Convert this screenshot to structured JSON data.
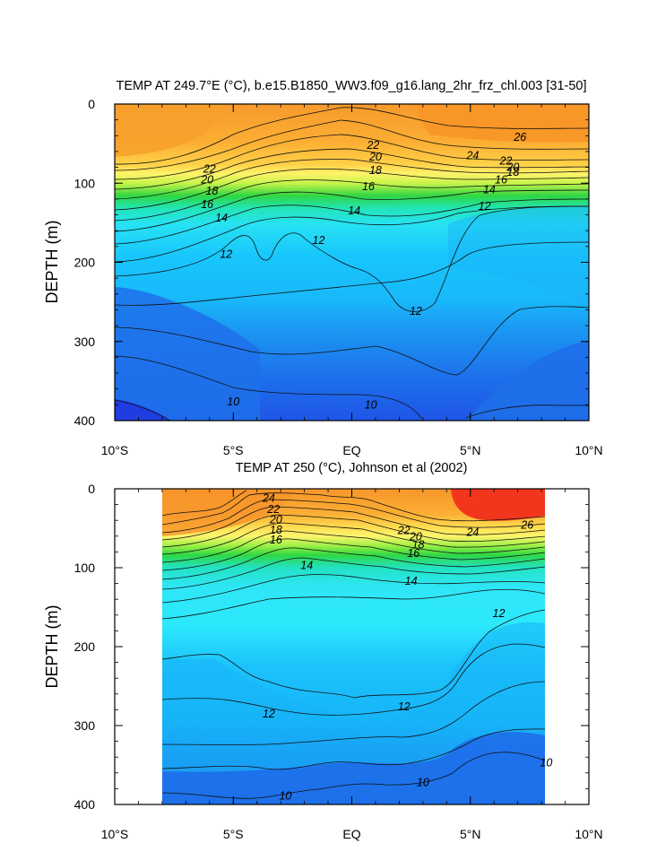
{
  "chart_data": [
    {
      "type": "heatmap",
      "title": "TEMP AT 249.7°E (°C), b.e15.B1850_WW3.f09_g16.lang_2hr_frz_chl.003 [31-50]",
      "xlabel": "",
      "ylabel": "DEPTH (m)",
      "xlim": [
        -10,
        10
      ],
      "ylim": [
        400,
        0
      ],
      "x_ticks": [
        "10°S",
        "5°S",
        "EQ",
        "5°N",
        "10°N"
      ],
      "y_ticks": [
        "0",
        "100",
        "200",
        "300",
        "400"
      ],
      "contour_labels": [
        {
          "text": "26",
          "x": 7.1,
          "y": 42
        },
        {
          "text": "24",
          "x": 5.1,
          "y": 65
        },
        {
          "text": "22",
          "x": 0.9,
          "y": 52
        },
        {
          "text": "20",
          "x": 1.0,
          "y": 67
        },
        {
          "text": "18",
          "x": 1.0,
          "y": 84
        },
        {
          "text": "16",
          "x": 0.7,
          "y": 104
        },
        {
          "text": "14",
          "x": 0.1,
          "y": 135
        },
        {
          "text": "12",
          "x": -1.4,
          "y": 172
        },
        {
          "text": "12",
          "x": 2.7,
          "y": 262
        },
        {
          "text": "12",
          "x": -5.3,
          "y": 190
        },
        {
          "text": "22",
          "x": -6.0,
          "y": 82
        },
        {
          "text": "20",
          "x": -6.1,
          "y": 96
        },
        {
          "text": "18",
          "x": -5.9,
          "y": 110
        },
        {
          "text": "16",
          "x": -6.1,
          "y": 127
        },
        {
          "text": "14",
          "x": -5.5,
          "y": 144
        },
        {
          "text": "22",
          "x": 6.5,
          "y": 72
        },
        {
          "text": "20",
          "x": 6.8,
          "y": 80
        },
        {
          "text": "18",
          "x": 6.8,
          "y": 86
        },
        {
          "text": "16",
          "x": 6.3,
          "y": 96
        },
        {
          "text": "14",
          "x": 5.8,
          "y": 108
        },
        {
          "text": "12",
          "x": 5.6,
          "y": 129
        },
        {
          "text": "10",
          "x": -5.0,
          "y": 376
        },
        {
          "text": "10",
          "x": 0.8,
          "y": 380
        }
      ]
    },
    {
      "type": "heatmap",
      "title": "TEMP AT 250 (°C), Johnson et al (2002)",
      "xlabel": "",
      "ylabel": "DEPTH (m)",
      "xlim": [
        -10,
        10
      ],
      "ylim": [
        400,
        0
      ],
      "data_extent_x": [
        -8,
        8.2
      ],
      "x_ticks": [
        "10°S",
        "5°S",
        "EQ",
        "5°N",
        "10°N"
      ],
      "y_ticks": [
        "0",
        "100",
        "200",
        "300",
        "400"
      ],
      "contour_labels": [
        {
          "text": "24",
          "x": -3.5,
          "y": 12
        },
        {
          "text": "22",
          "x": -3.3,
          "y": 26
        },
        {
          "text": "20",
          "x": -3.2,
          "y": 39
        },
        {
          "text": "18",
          "x": -3.2,
          "y": 52
        },
        {
          "text": "16",
          "x": -3.2,
          "y": 65
        },
        {
          "text": "22",
          "x": 2.2,
          "y": 53
        },
        {
          "text": "20",
          "x": 2.7,
          "y": 61
        },
        {
          "text": "18",
          "x": 2.8,
          "y": 71
        },
        {
          "text": "16",
          "x": 2.6,
          "y": 82
        },
        {
          "text": "24",
          "x": 5.1,
          "y": 55
        },
        {
          "text": "26",
          "x": 7.4,
          "y": 46
        },
        {
          "text": "14",
          "x": -1.9,
          "y": 97
        },
        {
          "text": "14",
          "x": 2.5,
          "y": 117
        },
        {
          "text": "12",
          "x": 6.2,
          "y": 158
        },
        {
          "text": "12",
          "x": -3.5,
          "y": 285
        },
        {
          "text": "12",
          "x": 2.2,
          "y": 276
        },
        {
          "text": "10",
          "x": 8.2,
          "y": 347
        },
        {
          "text": "10",
          "x": -2.8,
          "y": 389
        },
        {
          "text": "10",
          "x": 3.0,
          "y": 372
        }
      ]
    }
  ]
}
